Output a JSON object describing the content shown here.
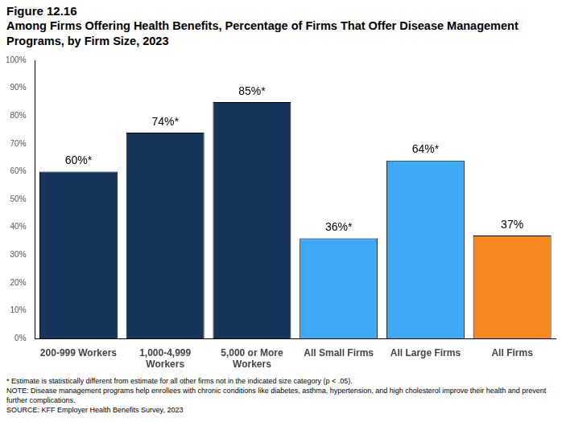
{
  "chart_data": {
    "type": "bar",
    "title": "Figure 12.16",
    "subtitle": "Among Firms Offering Health Benefits, Percentage of Firms That Offer Disease Management Programs, by Firm Size, 2023",
    "categories": [
      "200-999 Workers",
      "1,000-4,999 Workers",
      "5,000 or More Workers",
      "All Small Firms",
      "All Large Firms",
      "All Firms"
    ],
    "values": [
      60,
      74,
      85,
      36,
      64,
      37
    ],
    "value_labels": [
      "60%*",
      "74%*",
      "85%*",
      "36%*",
      "64%*",
      "37%"
    ],
    "colors": [
      "#15365a",
      "#15365a",
      "#15365a",
      "#3fa9f5",
      "#3fa9f5",
      "#f7891f"
    ],
    "data_labels": true,
    "ylim": [
      0,
      100
    ],
    "yticks": [
      {
        "value": 0,
        "label": "0%"
      },
      {
        "value": 10,
        "label": "10%"
      },
      {
        "value": 20,
        "label": "20%"
      },
      {
        "value": 30,
        "label": "30%"
      },
      {
        "value": 40,
        "label": "40%"
      },
      {
        "value": 50,
        "label": "50%"
      },
      {
        "value": 60,
        "label": "60%"
      },
      {
        "value": 70,
        "label": "70%"
      },
      {
        "value": 80,
        "label": "80%"
      },
      {
        "value": 90,
        "label": "90%"
      },
      {
        "value": 100,
        "label": "100%"
      }
    ],
    "grid": false,
    "notes": [
      "* Estimate is statistically different from estimate for all other firms not in the indicated size category (p < .05).",
      "NOTE: Disease management programs help enrollees with chronic conditions like diabetes, asthma, hypertension, and high cholesterol improve their health and prevent further complications.",
      "SOURCE: KFF Employer Health Benefits Survey, 2023"
    ]
  }
}
